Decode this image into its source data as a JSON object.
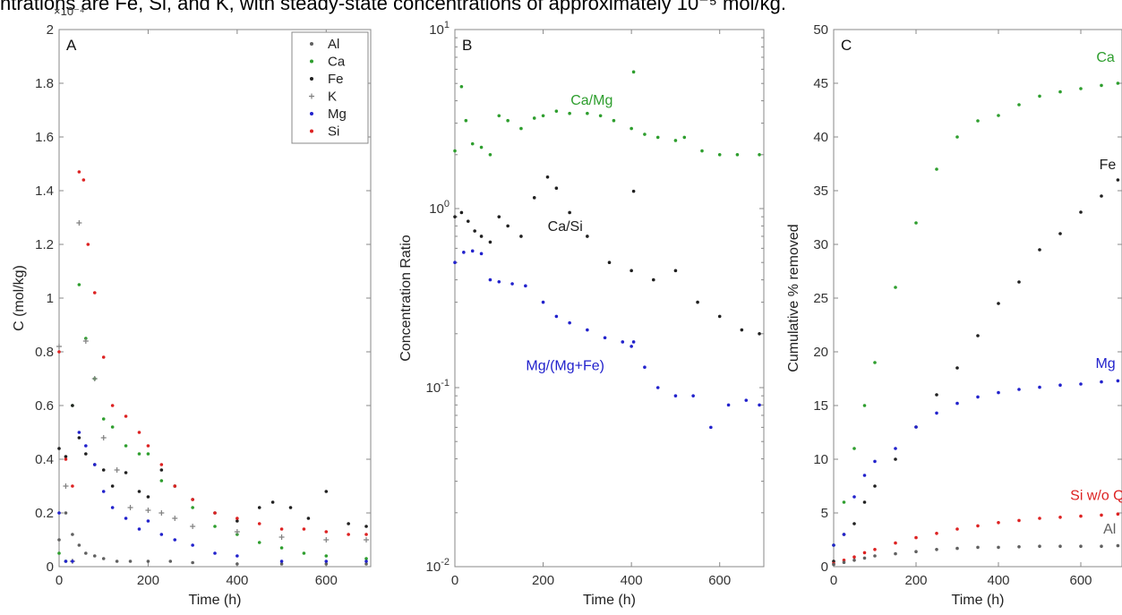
{
  "caption": "ntrations are Fe, Si, and K, with steady-state concentrations of approximately 10⁻⁵ mol/kg.",
  "colors": {
    "Al": "#606060",
    "Ca": "#2e9e2e",
    "Fe": "#202020",
    "K": "#808080",
    "Mg": "#2222cc",
    "Si": "#dd2222",
    "axis": "#888888"
  },
  "chart_data": [
    {
      "panel": "A",
      "type": "scatter",
      "xlabel": "Time (h)",
      "ylabel": "C (mol/kg)",
      "axis_multiplier": "×10⁻⁴",
      "xlim": [
        0,
        700
      ],
      "ylim": [
        0,
        2
      ],
      "x_ticks": [
        0,
        200,
        400,
        600
      ],
      "y_ticks": [
        0,
        0.2,
        0.4,
        0.6,
        0.8,
        1,
        1.2,
        1.4,
        1.6,
        1.8,
        2
      ],
      "y_tick_labels": [
        "0",
        "0.2",
        "0.4",
        "0.6",
        "0.8",
        "1",
        "1.2",
        "1.4",
        "1.6",
        "1.8",
        "2"
      ],
      "legend": {
        "position": "top-right",
        "entries": [
          "Al",
          "Ca",
          "Fe",
          "K",
          "Mg",
          "Si"
        ]
      },
      "series": [
        {
          "name": "Al",
          "key": "Al",
          "marker": "dot",
          "x": [
            0,
            15,
            30,
            45,
            60,
            80,
            100,
            130,
            160,
            200,
            250,
            300,
            400,
            500,
            600,
            690
          ],
          "y": [
            0.1,
            0.2,
            0.12,
            0.08,
            0.05,
            0.04,
            0.03,
            0.02,
            0.02,
            0.02,
            0.02,
            0.015,
            0.01,
            0.01,
            0.01,
            0.01
          ]
        },
        {
          "name": "Ca",
          "key": "Ca",
          "marker": "dot",
          "x": [
            0,
            15,
            30,
            45,
            60,
            80,
            100,
            120,
            150,
            180,
            200,
            230,
            260,
            300,
            350,
            400,
            450,
            500,
            550,
            600,
            690
          ],
          "y": [
            0.05,
            0.02,
            0.6,
            1.05,
            0.85,
            0.7,
            0.55,
            0.52,
            0.45,
            0.42,
            0.42,
            0.32,
            0.3,
            0.22,
            0.15,
            0.12,
            0.09,
            0.07,
            0.05,
            0.04,
            0.03
          ]
        },
        {
          "name": "Fe",
          "key": "Fe",
          "marker": "dot",
          "x": [
            0,
            15,
            30,
            45,
            60,
            80,
            100,
            120,
            150,
            180,
            200,
            230,
            260,
            300,
            350,
            400,
            450,
            480,
            520,
            560,
            600,
            650,
            690
          ],
          "y": [
            0.44,
            0.41,
            0.6,
            0.48,
            0.42,
            0.38,
            0.36,
            0.3,
            0.35,
            0.28,
            0.26,
            0.36,
            0.3,
            0.25,
            0.2,
            0.17,
            0.22,
            0.24,
            0.22,
            0.18,
            0.28,
            0.16,
            0.15
          ]
        },
        {
          "name": "K",
          "key": "K",
          "marker": "plus",
          "x": [
            0,
            15,
            30,
            45,
            60,
            80,
            100,
            130,
            160,
            200,
            230,
            260,
            300,
            400,
            500,
            600,
            690
          ],
          "y": [
            0.82,
            0.3,
            0.02,
            1.28,
            0.84,
            0.7,
            0.48,
            0.36,
            0.22,
            0.21,
            0.2,
            0.18,
            0.15,
            0.13,
            0.11,
            0.1,
            0.1
          ]
        },
        {
          "name": "Mg",
          "key": "Mg",
          "marker": "dot",
          "x": [
            0,
            15,
            30,
            45,
            60,
            80,
            100,
            120,
            150,
            180,
            200,
            230,
            260,
            300,
            350,
            400,
            500,
            600,
            690
          ],
          "y": [
            0.2,
            0.02,
            0.02,
            0.5,
            0.45,
            0.38,
            0.28,
            0.22,
            0.18,
            0.14,
            0.17,
            0.12,
            0.1,
            0.08,
            0.05,
            0.04,
            0.02,
            0.02,
            0.02
          ]
        },
        {
          "name": "Si",
          "key": "Si",
          "marker": "dot",
          "x": [
            0,
            15,
            30,
            45,
            55,
            65,
            80,
            100,
            120,
            150,
            180,
            200,
            230,
            260,
            300,
            350,
            400,
            450,
            500,
            550,
            600,
            650,
            690
          ],
          "y": [
            0.8,
            0.4,
            0.3,
            1.47,
            1.44,
            1.2,
            1.02,
            0.78,
            0.6,
            0.56,
            0.5,
            0.45,
            0.38,
            0.3,
            0.25,
            0.2,
            0.18,
            0.16,
            0.14,
            0.14,
            0.13,
            0.12,
            0.12
          ]
        }
      ]
    },
    {
      "panel": "B",
      "type": "scatter",
      "xlabel": "Time (h)",
      "ylabel": "Concentration Ratio",
      "xlim": [
        0,
        700
      ],
      "ylim": [
        0.01,
        10
      ],
      "y_scale": "log",
      "x_ticks": [
        0,
        200,
        400,
        600
      ],
      "y_ticks": [
        0.01,
        0.1,
        1,
        10
      ],
      "y_tick_labels": [
        {
          "base": "10",
          "exp": "-2"
        },
        {
          "base": "10",
          "exp": "-1"
        },
        {
          "base": "10",
          "exp": "0"
        },
        {
          "base": "10",
          "exp": "1"
        }
      ],
      "series": [
        {
          "name": "Ca/Mg",
          "key": "Ca",
          "label_pos": {
            "x": 310,
            "y": 3.8
          },
          "x": [
            0,
            15,
            25,
            40,
            60,
            80,
            100,
            120,
            150,
            180,
            200,
            230,
            260,
            300,
            330,
            360,
            400,
            405,
            430,
            460,
            500,
            520,
            560,
            600,
            640,
            690
          ],
          "y": [
            2.1,
            4.8,
            3.1,
            2.3,
            2.2,
            2.0,
            3.3,
            3.1,
            2.8,
            3.2,
            3.3,
            3.5,
            3.4,
            3.4,
            3.3,
            3.1,
            2.8,
            5.8,
            2.6,
            2.5,
            2.4,
            2.5,
            2.1,
            2.0,
            2.0,
            2.0
          ]
        },
        {
          "name": "Ca/Si",
          "key": "Fe",
          "label_pos": {
            "x": 250,
            "y": 0.75
          },
          "x": [
            0,
            15,
            30,
            45,
            60,
            80,
            100,
            120,
            150,
            180,
            210,
            230,
            260,
            300,
            350,
            400,
            405,
            450,
            500,
            550,
            600,
            650,
            690
          ],
          "y": [
            0.9,
            0.95,
            0.85,
            0.75,
            0.7,
            0.65,
            0.9,
            0.8,
            0.7,
            1.15,
            1.5,
            1.3,
            0.95,
            0.7,
            0.5,
            0.45,
            1.25,
            0.4,
            0.45,
            0.3,
            0.25,
            0.21,
            0.2
          ]
        },
        {
          "name": "Mg/(Mg+Fe)",
          "key": "Mg",
          "label_pos": {
            "x": 250,
            "y": 0.125
          },
          "x": [
            0,
            20,
            40,
            60,
            80,
            100,
            130,
            160,
            200,
            230,
            260,
            300,
            340,
            380,
            400,
            405,
            430,
            460,
            500,
            540,
            580,
            620,
            660,
            690
          ],
          "y": [
            0.5,
            0.57,
            0.58,
            0.56,
            0.4,
            0.39,
            0.38,
            0.37,
            0.3,
            0.25,
            0.23,
            0.21,
            0.19,
            0.18,
            0.17,
            0.18,
            0.13,
            0.1,
            0.09,
            0.09,
            0.06,
            0.08,
            0.085,
            0.08
          ]
        }
      ]
    },
    {
      "panel": "C",
      "type": "scatter",
      "xlabel": "Time (h)",
      "ylabel": "Cumulative % removed",
      "xlim": [
        0,
        700
      ],
      "ylim": [
        0,
        50
      ],
      "x_ticks": [
        0,
        200,
        400,
        600
      ],
      "y_ticks": [
        0,
        5,
        10,
        15,
        20,
        25,
        30,
        35,
        40,
        45,
        50
      ],
      "y_tick_labels": [
        "0",
        "5",
        "10",
        "15",
        "20",
        "25",
        "30",
        "35",
        "40",
        "45",
        "50"
      ],
      "series": [
        {
          "name": "Ca",
          "key": "Ca",
          "label_pos": {
            "x": 660,
            "y": 47
          },
          "x": [
            0,
            25,
            50,
            75,
            100,
            150,
            200,
            250,
            300,
            350,
            400,
            450,
            500,
            550,
            600,
            650,
            690
          ],
          "y": [
            2,
            6,
            11,
            15,
            19,
            26,
            32,
            37,
            40,
            41.5,
            42,
            43,
            43.8,
            44.2,
            44.5,
            44.8,
            45
          ]
        },
        {
          "name": "Fe",
          "key": "Fe",
          "label_pos": {
            "x": 665,
            "y": 37
          },
          "x": [
            0,
            25,
            50,
            75,
            100,
            150,
            200,
            250,
            300,
            350,
            400,
            450,
            500,
            550,
            600,
            650,
            690
          ],
          "y": [
            0.5,
            3,
            4,
            6,
            7.5,
            10,
            13,
            16,
            18.5,
            21.5,
            24.5,
            26.5,
            29.5,
            31,
            33,
            34.5,
            36
          ]
        },
        {
          "name": "Mg",
          "key": "Mg",
          "label_pos": {
            "x": 660,
            "y": 18.5
          },
          "x": [
            0,
            25,
            50,
            75,
            100,
            150,
            200,
            250,
            300,
            350,
            400,
            450,
            500,
            550,
            600,
            650,
            690
          ],
          "y": [
            2,
            3,
            6.5,
            8.5,
            9.8,
            11,
            13,
            14.3,
            15.2,
            15.8,
            16.2,
            16.5,
            16.7,
            16.9,
            17,
            17.2,
            17.3
          ]
        },
        {
          "name": "Si w/o Q",
          "key": "Si",
          "label_pos": {
            "x": 640,
            "y": 6.2
          },
          "x": [
            0,
            25,
            50,
            75,
            100,
            150,
            200,
            250,
            300,
            350,
            400,
            450,
            500,
            550,
            600,
            650,
            690
          ],
          "y": [
            0.3,
            0.6,
            0.9,
            1.3,
            1.6,
            2.2,
            2.7,
            3.1,
            3.5,
            3.8,
            4.1,
            4.3,
            4.5,
            4.6,
            4.7,
            4.8,
            4.9
          ]
        },
        {
          "name": "Al",
          "key": "Al",
          "label_pos": {
            "x": 670,
            "y": 3.1
          },
          "x": [
            0,
            25,
            50,
            75,
            100,
            150,
            200,
            250,
            300,
            350,
            400,
            450,
            500,
            550,
            600,
            650,
            690
          ],
          "y": [
            0.2,
            0.4,
            0.6,
            0.8,
            1.0,
            1.2,
            1.4,
            1.6,
            1.7,
            1.8,
            1.8,
            1.85,
            1.9,
            1.9,
            1.9,
            1.9,
            1.95
          ]
        }
      ]
    }
  ]
}
